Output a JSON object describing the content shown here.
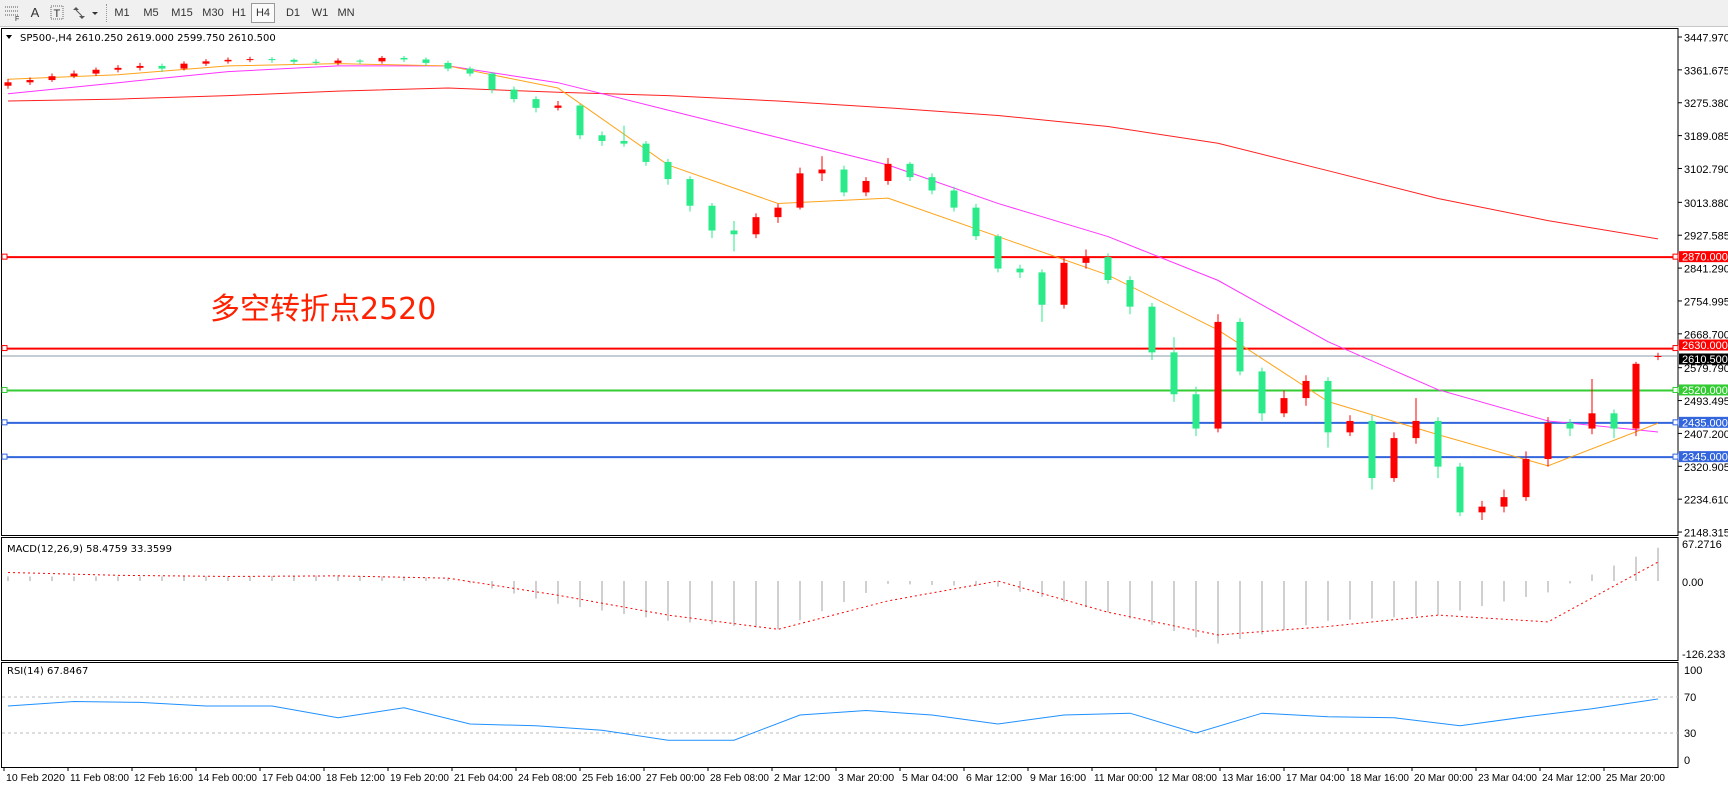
{
  "toolbar": {
    "icons": [
      "grid-f-icon",
      "text-a-icon",
      "text-box-icon",
      "arrows-icon"
    ],
    "timeframes": [
      "M1",
      "M5",
      "M15",
      "M30",
      "H1",
      "H4",
      "D1",
      "W1",
      "MN"
    ],
    "active_timeframe": "H4"
  },
  "main_info": "SP500-,H4  2610.250 2619.000 2599.750 2610.500",
  "annotation": "多空转折点2520",
  "colors": {
    "up": "#ff0000",
    "down": "#2bea8a",
    "ma_fast": "#ffa31a",
    "ma_mid": "#ff33ff",
    "ma_slow": "#ff2020",
    "macd_hist": "#c0c0c0",
    "macd_signal": "#ff0000",
    "rsi": "#1e90ff"
  },
  "chart_data": {
    "type": "candlestick",
    "symbol": "SP500-",
    "timeframe": "H4",
    "ylim": [
      2148.315,
      3447.97
    ],
    "y_ticks": [
      "3447.970",
      "3361.675",
      "3275.380",
      "3189.085",
      "3102.790",
      "3013.880",
      "2927.585",
      "2841.290",
      "2754.995",
      "2668.700",
      "2579.790",
      "2493.495",
      "2407.200",
      "2320.905",
      "2234.610",
      "2148.315"
    ],
    "x_ticks": [
      "10 Feb 2020",
      "11 Feb 08:00",
      "12 Feb 16:00",
      "14 Feb 00:00",
      "17 Feb 04:00",
      "18 Feb 12:00",
      "19 Feb 20:00",
      "21 Feb 04:00",
      "24 Feb 08:00",
      "25 Feb 16:00",
      "27 Feb 00:00",
      "28 Feb 08:00",
      "2 Mar 12:00",
      "3 Mar 20:00",
      "5 Mar 04:00",
      "6 Mar 12:00",
      "9 Mar 16:00",
      "11 Mar 00:00",
      "12 Mar 08:00",
      "13 Mar 16:00",
      "17 Mar 04:00",
      "18 Mar 16:00",
      "20 Mar 00:00",
      "23 Mar 04:00",
      "24 Mar 12:00",
      "25 Mar 20:00"
    ],
    "candles_ohlc": [
      [
        3320,
        3338,
        3312,
        3329
      ],
      [
        3329,
        3342,
        3322,
        3335
      ],
      [
        3335,
        3352,
        3330,
        3345
      ],
      [
        3345,
        3360,
        3340,
        3352
      ],
      [
        3352,
        3368,
        3346,
        3362
      ],
      [
        3362,
        3374,
        3355,
        3367
      ],
      [
        3367,
        3380,
        3360,
        3372
      ],
      [
        3372,
        3378,
        3356,
        3365
      ],
      [
        3365,
        3384,
        3360,
        3378
      ],
      [
        3378,
        3390,
        3372,
        3384
      ],
      [
        3384,
        3394,
        3378,
        3388
      ],
      [
        3388,
        3396,
        3382,
        3390
      ],
      [
        3390,
        3395,
        3380,
        3388
      ],
      [
        3388,
        3392,
        3376,
        3383
      ],
      [
        3383,
        3390,
        3374,
        3380
      ],
      [
        3380,
        3392,
        3374,
        3386
      ],
      [
        3386,
        3390,
        3376,
        3384
      ],
      [
        3384,
        3398,
        3378,
        3393
      ],
      [
        3393,
        3398,
        3382,
        3389
      ],
      [
        3389,
        3394,
        3372,
        3380
      ],
      [
        3380,
        3386,
        3358,
        3365
      ],
      [
        3365,
        3370,
        3345,
        3352
      ],
      [
        3352,
        3356,
        3300,
        3310
      ],
      [
        3310,
        3318,
        3276,
        3285
      ],
      [
        3285,
        3292,
        3250,
        3262
      ],
      [
        3262,
        3280,
        3255,
        3268
      ],
      [
        3268,
        3272,
        3180,
        3190
      ],
      [
        3190,
        3200,
        3162,
        3175
      ],
      [
        3175,
        3215,
        3160,
        3168
      ],
      [
        3168,
        3175,
        3110,
        3120
      ],
      [
        3120,
        3128,
        3060,
        3075
      ],
      [
        3075,
        3082,
        2990,
        3005
      ],
      [
        3005,
        3012,
        2920,
        2940
      ],
      [
        2940,
        2965,
        2885,
        2930
      ],
      [
        2930,
        2985,
        2920,
        2975
      ],
      [
        2975,
        3010,
        2960,
        3000
      ],
      [
        3000,
        3105,
        2995,
        3090
      ],
      [
        3090,
        3135,
        3070,
        3100
      ],
      [
        3100,
        3110,
        3030,
        3040
      ],
      [
        3040,
        3080,
        3030,
        3070
      ],
      [
        3070,
        3130,
        3060,
        3115
      ],
      [
        3115,
        3120,
        3070,
        3080
      ],
      [
        3080,
        3090,
        3035,
        3045
      ],
      [
        3045,
        3055,
        2990,
        3000
      ],
      [
        3000,
        3010,
        2915,
        2925
      ],
      [
        2925,
        2930,
        2830,
        2840
      ],
      [
        2840,
        2850,
        2815,
        2830
      ],
      [
        2830,
        2838,
        2700,
        2745
      ],
      [
        2745,
        2870,
        2735,
        2855
      ],
      [
        2855,
        2890,
        2840,
        2870
      ],
      [
        2870,
        2880,
        2800,
        2810
      ],
      [
        2810,
        2820,
        2720,
        2740
      ],
      [
        2740,
        2750,
        2600,
        2620
      ],
      [
        2620,
        2660,
        2490,
        2510
      ],
      [
        2510,
        2530,
        2400,
        2420
      ],
      [
        2420,
        2720,
        2410,
        2700
      ],
      [
        2700,
        2710,
        2560,
        2570
      ],
      [
        2570,
        2580,
        2440,
        2460
      ],
      [
        2460,
        2520,
        2450,
        2500
      ],
      [
        2500,
        2560,
        2480,
        2545
      ],
      [
        2545,
        2555,
        2370,
        2410
      ],
      [
        2410,
        2455,
        2400,
        2440
      ],
      [
        2440,
        2455,
        2260,
        2290
      ],
      [
        2290,
        2410,
        2280,
        2395
      ],
      [
        2395,
        2500,
        2380,
        2440
      ],
      [
        2440,
        2450,
        2290,
        2320
      ],
      [
        2320,
        2330,
        2190,
        2200
      ],
      [
        2200,
        2230,
        2180,
        2215
      ],
      [
        2215,
        2260,
        2200,
        2240
      ],
      [
        2240,
        2360,
        2230,
        2340
      ],
      [
        2340,
        2450,
        2320,
        2435
      ],
      [
        2435,
        2445,
        2400,
        2420
      ],
      [
        2420,
        2550,
        2405,
        2460
      ],
      [
        2460,
        2470,
        2395,
        2420
      ],
      [
        2420,
        2595,
        2400,
        2590
      ],
      [
        2610.25,
        2619,
        2599.75,
        2610.5
      ]
    ],
    "ma_sample_every_bars": 5,
    "ma_fast": [
      3337,
      3349,
      3372,
      3378,
      3372,
      3314,
      3112,
      3011,
      3025,
      2924,
      2823,
      2679,
      2491,
      2404,
      2322,
      2434
    ],
    "ma_mid": [
      3299,
      3328,
      3357,
      3372,
      3372,
      3328,
      3256,
      3184,
      3112,
      3011,
      2924,
      2809,
      2648,
      2522,
      2440,
      2411
    ],
    "ma_slow": [
      3280,
      3285,
      3294,
      3306,
      3314,
      3303,
      3294,
      3280,
      3262,
      3242,
      3213,
      3169,
      3097,
      3024,
      2966,
      2918
    ],
    "levels": [
      {
        "value": 2870,
        "label": "2870.000",
        "color": "#ff0000"
      },
      {
        "value": 2630,
        "label": "2630.000",
        "color": "#ff0000"
      },
      {
        "value": 2520,
        "label": "2520.000",
        "color": "#33cc33"
      },
      {
        "value": 2435,
        "label": "2435.000",
        "color": "#3366dd"
      },
      {
        "value": 2345,
        "label": "2345.000",
        "color": "#3366dd"
      }
    ],
    "bid": {
      "value": 2610.5,
      "label": "2610.500"
    },
    "macd": {
      "title": "MACD(12,26,9) 58.4759 33.3599",
      "ylim": [
        -126.233,
        67.2716
      ],
      "y_ticks": [
        "67.2716",
        "0.00",
        "-126.233"
      ],
      "sample_every_bars": 5,
      "histogram": [
        8,
        8,
        8,
        10,
        5,
        -40,
        -70,
        -85,
        -5,
        -10,
        -55,
        -110,
        -70,
        -60,
        -20,
        58.4759
      ],
      "signal": [
        15,
        10,
        8,
        9,
        5,
        -25,
        -60,
        -85,
        -35,
        0,
        -55,
        -95,
        -80,
        -60,
        -72,
        33.3599
      ]
    },
    "rsi": {
      "title": "RSI(14) 67.8467",
      "ylim": [
        0,
        100
      ],
      "y_ticks": [
        "100",
        "70",
        "30",
        "0"
      ],
      "levels": [
        70,
        30
      ],
      "sample_every_bars": 3,
      "values": [
        60,
        65,
        64,
        60,
        60,
        47,
        58,
        40,
        38,
        33,
        22,
        22,
        50,
        55,
        50,
        40,
        50,
        52,
        30,
        52,
        48,
        47,
        38,
        48,
        57,
        67.8467
      ]
    }
  }
}
